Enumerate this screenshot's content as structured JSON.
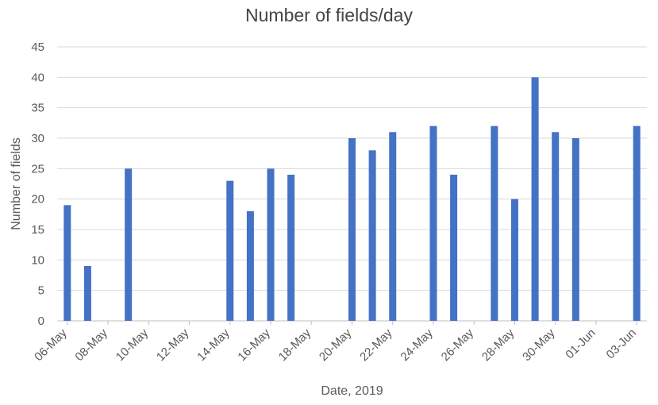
{
  "chart_data": {
    "type": "bar",
    "title": "Number of fields/day",
    "xlabel": "Date, 2019",
    "ylabel": "Number of fields",
    "ylim": [
      0,
      45
    ],
    "yticks": [
      0,
      5,
      10,
      15,
      20,
      25,
      30,
      35,
      40,
      45
    ],
    "grid": true,
    "legend": "none",
    "bar_color": "#4472C4",
    "gridline_color": "#D9D9D9",
    "x_tick_labels": [
      "06-May",
      "08-May",
      "10-May",
      "12-May",
      "14-May",
      "16-May",
      "18-May",
      "20-May",
      "22-May",
      "24-May",
      "26-May",
      "28-May",
      "30-May",
      "01-Jun",
      "03-Jun"
    ],
    "categories": [
      "06-May",
      "07-May",
      "08-May",
      "09-May",
      "10-May",
      "11-May",
      "12-May",
      "13-May",
      "14-May",
      "15-May",
      "16-May",
      "17-May",
      "18-May",
      "19-May",
      "20-May",
      "21-May",
      "22-May",
      "23-May",
      "24-May",
      "25-May",
      "26-May",
      "27-May",
      "28-May",
      "29-May",
      "30-May",
      "31-May",
      "01-Jun",
      "02-Jun",
      "03-Jun"
    ],
    "values": [
      19,
      9,
      0,
      25,
      0,
      0,
      0,
      0,
      23,
      18,
      25,
      24,
      0,
      0,
      30,
      28,
      31,
      0,
      32,
      24,
      0,
      32,
      20,
      40,
      31,
      30,
      0,
      0,
      32
    ]
  }
}
